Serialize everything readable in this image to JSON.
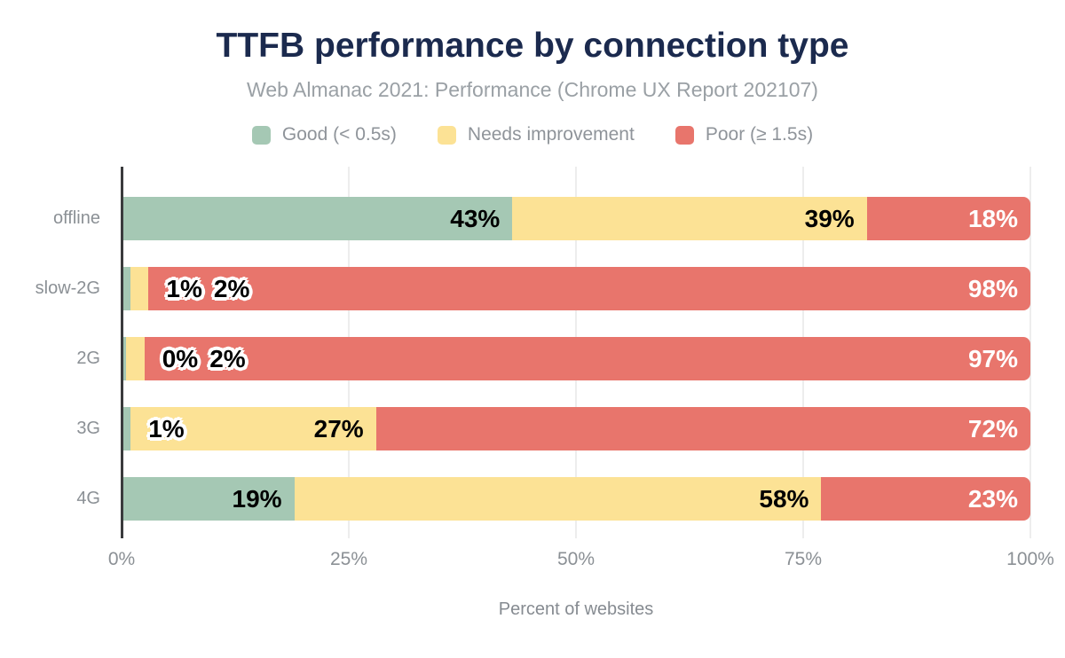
{
  "title": "TTFB performance by connection type",
  "subtitle": "Web Almanac 2021: Performance (Chrome UX Report 202107)",
  "colors": {
    "background": "#ffffff",
    "title_text": "#1b2a4e",
    "subtitle_text": "#9aa0a5",
    "axis_text": "#8b9095",
    "axis_line": "#3a3b3d",
    "gridline": "#ededed",
    "value_label_dark": "#000000",
    "value_label_light": "#ffffff"
  },
  "chart_data": {
    "type": "bar",
    "orientation": "horizontal",
    "stacked": true,
    "title": "TTFB performance by connection type",
    "subtitle": "Web Almanac 2021: Performance (Chrome UX Report 202107)",
    "categories": [
      "offline",
      "slow-2G",
      "2G",
      "3G",
      "4G"
    ],
    "series": [
      {
        "name": "Good (< 0.5s)",
        "color": "#a5c8b4",
        "values": [
          43,
          1,
          0,
          1,
          19
        ]
      },
      {
        "name": "Needs improvement",
        "color": "#fce295",
        "values": [
          39,
          2,
          2,
          27,
          58
        ]
      },
      {
        "name": "Poor (≥ 1.5s)",
        "color": "#e8756c",
        "values": [
          18,
          98,
          97,
          72,
          23
        ]
      }
    ],
    "value_suffix": "%",
    "xlabel": "Percent of websites",
    "ylabel": "",
    "xlim": [
      0,
      100
    ],
    "xticks": [
      "0%",
      "25%",
      "50%",
      "75%",
      "100%"
    ],
    "grid": true,
    "legend_position": "top"
  }
}
